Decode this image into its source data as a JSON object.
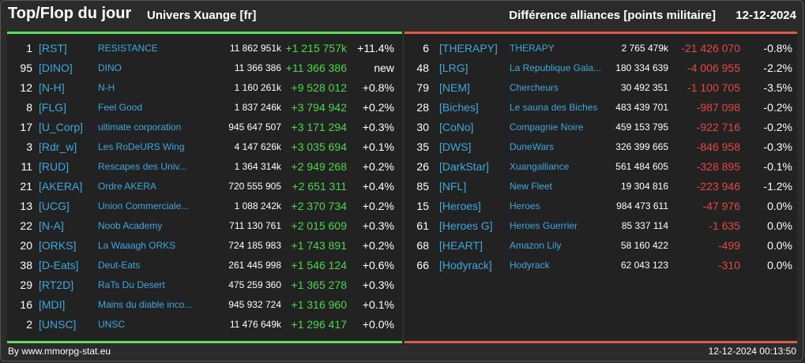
{
  "header": {
    "title": "Top/Flop du jour",
    "universe": "Univers Xuange [fr]",
    "subtitle": "Différence alliances [points militaire]",
    "date": "12-12-2024"
  },
  "colors": {
    "positive": "#4cd84c",
    "negative": "#e8473e",
    "tag": "#3ea8e0",
    "top_line": "#5ddc5d",
    "flop_line": "#e05a4e"
  },
  "top": [
    {
      "rank": "1",
      "tag": "[RST]",
      "name": "RESISTANCE",
      "points": "11 862 951k",
      "delta": "+1 215 757k",
      "pct": "+11.4%"
    },
    {
      "rank": "95",
      "tag": "[DINO]",
      "name": "DINO",
      "points": "11 366 386",
      "delta": "+11 366 386",
      "pct": "new"
    },
    {
      "rank": "12",
      "tag": "[N-H]",
      "name": "N-H",
      "points": "1 160 261k",
      "delta": "+9 528 012",
      "pct": "+0.8%"
    },
    {
      "rank": "8",
      "tag": "[FLG]",
      "name": "Feel Good",
      "points": "1 837 246k",
      "delta": "+3 794 942",
      "pct": "+0.2%"
    },
    {
      "rank": "17",
      "tag": "[U_Corp]",
      "name": "ultimate corporation",
      "points": "945 647 507",
      "delta": "+3 171 294",
      "pct": "+0.3%"
    },
    {
      "rank": "3",
      "tag": "[Rdr_w]",
      "name": "Les RoDeURS Wing",
      "points": "4 147 626k",
      "delta": "+3 035 694",
      "pct": "+0.1%"
    },
    {
      "rank": "11",
      "tag": "[RUD]",
      "name": "Rescapes des Univ...",
      "points": "1 364 314k",
      "delta": "+2 949 268",
      "pct": "+0.2%"
    },
    {
      "rank": "21",
      "tag": "[AKERA]",
      "name": "Ordre AKERA",
      "points": "720 555 905",
      "delta": "+2 651 311",
      "pct": "+0.4%"
    },
    {
      "rank": "13",
      "tag": "[UCG]",
      "name": "Union Commerciale...",
      "points": "1 088 242k",
      "delta": "+2 370 734",
      "pct": "+0.2%"
    },
    {
      "rank": "22",
      "tag": "[N-A]",
      "name": "Noob Academy",
      "points": "711 130 761",
      "delta": "+2 015 609",
      "pct": "+0.3%"
    },
    {
      "rank": "20",
      "tag": "[ORKS]",
      "name": "La Waaagh ORKS",
      "points": "724 185 983",
      "delta": "+1 743 891",
      "pct": "+0.2%"
    },
    {
      "rank": "38",
      "tag": "[D-Eats]",
      "name": "Deut-Eats",
      "points": "261 445 998",
      "delta": "+1 546 124",
      "pct": "+0.6%"
    },
    {
      "rank": "29",
      "tag": "[RT2D]",
      "name": "RaTs Du Desert",
      "points": "475 259 360",
      "delta": "+1 365 278",
      "pct": "+0.3%"
    },
    {
      "rank": "16",
      "tag": "[MDI]",
      "name": "Mains du diable inco...",
      "points": "945 932 724",
      "delta": "+1 316 960",
      "pct": "+0.1%"
    },
    {
      "rank": "2",
      "tag": "[UNSC]",
      "name": "UNSC",
      "points": "11 476 649k",
      "delta": "+1 296 417",
      "pct": "+0.0%"
    }
  ],
  "flop": [
    {
      "rank": "6",
      "tag": "[THERAPY]",
      "name": "THERAPY",
      "points": "2 765 479k",
      "delta": "-21 426 070",
      "pct": "-0.8%"
    },
    {
      "rank": "48",
      "tag": "[LRG]",
      "name": "La Republique Gala...",
      "points": "180 334 639",
      "delta": "-4 006 955",
      "pct": "-2.2%"
    },
    {
      "rank": "79",
      "tag": "[NEM]",
      "name": "Chercheurs",
      "points": "30 492 351",
      "delta": "-1 100 705",
      "pct": "-3.5%"
    },
    {
      "rank": "28",
      "tag": "[Biches]",
      "name": "Le sauna des Biches",
      "points": "483 439 701",
      "delta": "-987 098",
      "pct": "-0.2%"
    },
    {
      "rank": "30",
      "tag": "[CoNo]",
      "name": "Compagnie Noire",
      "points": "459 153 795",
      "delta": "-922 716",
      "pct": "-0.2%"
    },
    {
      "rank": "35",
      "tag": "[DWS]",
      "name": "DuneWars",
      "points": "326 399 665",
      "delta": "-846 958",
      "pct": "-0.3%"
    },
    {
      "rank": "26",
      "tag": "[DarkStar]",
      "name": "Xuangalliance",
      "points": "561 484 605",
      "delta": "-328 895",
      "pct": "-0.1%"
    },
    {
      "rank": "85",
      "tag": "[NFL]",
      "name": "New Fleet",
      "points": "19 304 816",
      "delta": "-223 946",
      "pct": "-1.2%"
    },
    {
      "rank": "15",
      "tag": "[Heroes]",
      "name": "Heroes",
      "points": "984 473 611",
      "delta": "-47 976",
      "pct": "0.0%"
    },
    {
      "rank": "61",
      "tag": "[Heroes G]",
      "name": "Heroes Guerrier",
      "points": "85 337 114",
      "delta": "-1 635",
      "pct": "0.0%"
    },
    {
      "rank": "68",
      "tag": "[HEART]",
      "name": "Amazon Lily",
      "points": "58 160 422",
      "delta": "-499",
      "pct": "0.0%"
    },
    {
      "rank": "66",
      "tag": "[Hodyrack]",
      "name": "Hodyrack",
      "points": "62 043 123",
      "delta": "-310",
      "pct": "0.0%"
    }
  ],
  "footer": {
    "credit": "By www.mmorpg-stat.eu",
    "timestamp": "12-12-2024 00:13:50"
  }
}
